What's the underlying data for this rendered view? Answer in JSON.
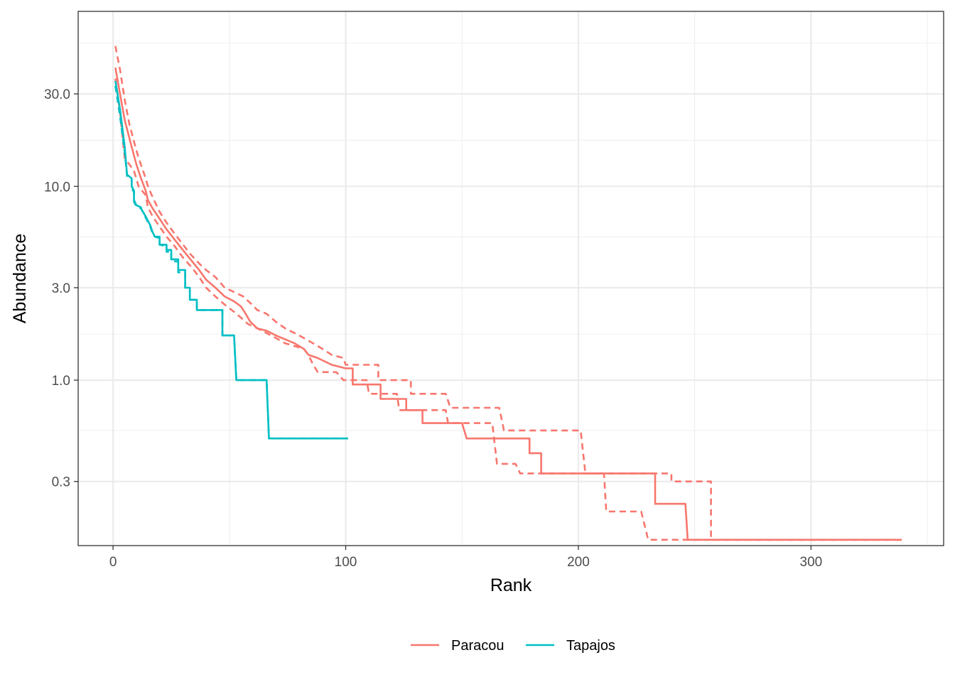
{
  "chart_data": {
    "type": "line",
    "xlabel": "Rank",
    "ylabel": "Abundance",
    "xlim": [
      -15,
      357
    ],
    "ylim_log": [
      0.14,
      80
    ],
    "y_scale": "log10",
    "x_ticks": [
      0,
      100,
      200,
      300
    ],
    "x_tick_labels": [
      "0",
      "100",
      "200",
      "300"
    ],
    "x_minor_ticks": [
      50,
      150,
      250,
      350
    ],
    "y_ticks": [
      0.3,
      1.0,
      3.0,
      10.0,
      30.0
    ],
    "y_tick_labels": [
      "0.3",
      "1.0",
      "3.0",
      "10.0",
      "30.0"
    ],
    "y_minor_ticks": [
      0.55,
      1.73,
      5.48,
      17.3,
      54.8
    ],
    "grid": true,
    "legend_position": "bottom",
    "legend": [
      "Paracou",
      "Tapajos"
    ],
    "colors": {
      "Paracou": "#F8766D",
      "Tapajos": "#00BFC4"
    },
    "series": [
      {
        "name": "Paracou",
        "style": "solid",
        "color": "#F8766D",
        "points": [
          [
            1,
            41
          ],
          [
            3,
            30
          ],
          [
            5,
            22
          ],
          [
            8,
            16
          ],
          [
            10,
            13
          ],
          [
            12,
            11
          ],
          [
            14,
            9.5
          ],
          [
            15,
            8.5
          ],
          [
            17,
            7.7
          ],
          [
            20,
            6.8
          ],
          [
            23,
            6.0
          ],
          [
            26,
            5.4
          ],
          [
            30,
            4.7
          ],
          [
            34,
            4.1
          ],
          [
            37,
            3.7
          ],
          [
            40,
            3.3
          ],
          [
            44,
            3.0
          ],
          [
            48,
            2.7
          ],
          [
            52,
            2.55
          ],
          [
            55,
            2.4
          ],
          [
            57,
            2.2
          ],
          [
            59,
            2.0
          ],
          [
            62,
            1.85
          ],
          [
            66,
            1.8
          ],
          [
            70,
            1.7
          ],
          [
            78,
            1.55
          ],
          [
            82,
            1.45
          ],
          [
            84,
            1.35
          ],
          [
            88,
            1.3
          ],
          [
            94,
            1.2
          ],
          [
            100,
            1.15
          ],
          [
            103,
            1.15
          ],
          [
            103,
            0.95
          ],
          [
            115,
            0.95
          ],
          [
            115,
            0.8
          ],
          [
            126,
            0.8
          ],
          [
            126,
            0.7
          ],
          [
            133,
            0.7
          ],
          [
            133,
            0.6
          ],
          [
            150,
            0.6
          ],
          [
            152,
            0.5
          ],
          [
            179,
            0.5
          ],
          [
            179,
            0.42
          ],
          [
            184,
            0.42
          ],
          [
            184,
            0.33
          ],
          [
            233,
            0.33
          ],
          [
            233,
            0.23
          ],
          [
            246,
            0.23
          ],
          [
            247,
            0.15
          ],
          [
            339,
            0.15
          ]
        ]
      },
      {
        "name": "Paracou",
        "style": "dashed",
        "color": "#F8766D",
        "points": [
          [
            1,
            53
          ],
          [
            3,
            40
          ],
          [
            5,
            28
          ],
          [
            7,
            21
          ],
          [
            9,
            17
          ],
          [
            11,
            14
          ],
          [
            14,
            11
          ],
          [
            15,
            10
          ],
          [
            17,
            8.8
          ],
          [
            20,
            7.4
          ],
          [
            23,
            6.5
          ],
          [
            26,
            5.8
          ],
          [
            29,
            5.2
          ],
          [
            33,
            4.5
          ],
          [
            37,
            4.0
          ],
          [
            40,
            3.7
          ],
          [
            44,
            3.4
          ],
          [
            48,
            3.0
          ],
          [
            52,
            2.85
          ],
          [
            56,
            2.7
          ],
          [
            59,
            2.5
          ],
          [
            62,
            2.3
          ],
          [
            66,
            2.2
          ],
          [
            70,
            2.0
          ],
          [
            74,
            1.85
          ],
          [
            80,
            1.7
          ],
          [
            86,
            1.55
          ],
          [
            90,
            1.45
          ],
          [
            94,
            1.35
          ],
          [
            99,
            1.3
          ],
          [
            100,
            1.2
          ],
          [
            114,
            1.2
          ],
          [
            114,
            1.0
          ],
          [
            128,
            1.0
          ],
          [
            128,
            0.85
          ],
          [
            143,
            0.85
          ],
          [
            145,
            0.72
          ],
          [
            166,
            0.72
          ],
          [
            168,
            0.55
          ],
          [
            201,
            0.55
          ],
          [
            203,
            0.33
          ],
          [
            240,
            0.33
          ],
          [
            240,
            0.3
          ],
          [
            257,
            0.3
          ],
          [
            257,
            0.15
          ],
          [
            339,
            0.15
          ]
        ]
      },
      {
        "name": "Paracou",
        "style": "dashed",
        "color": "#F8766D",
        "points": [
          [
            1,
            36
          ],
          [
            3,
            24
          ],
          [
            5,
            14
          ],
          [
            7,
            13
          ],
          [
            9,
            12
          ],
          [
            11,
            10
          ],
          [
            14,
            9
          ],
          [
            15,
            7.8
          ],
          [
            17,
            7.0
          ],
          [
            20,
            6.2
          ],
          [
            23,
            5.5
          ],
          [
            26,
            5.0
          ],
          [
            30,
            4.3
          ],
          [
            34,
            3.8
          ],
          [
            37,
            3.4
          ],
          [
            40,
            3.0
          ],
          [
            44,
            2.7
          ],
          [
            48,
            2.45
          ],
          [
            52,
            2.25
          ],
          [
            55,
            2.1
          ],
          [
            58,
            1.95
          ],
          [
            62,
            1.85
          ],
          [
            66,
            1.75
          ],
          [
            70,
            1.65
          ],
          [
            74,
            1.55
          ],
          [
            82,
            1.45
          ],
          [
            84,
            1.35
          ],
          [
            86,
            1.2
          ],
          [
            88,
            1.1
          ],
          [
            96,
            1.1
          ],
          [
            99,
            1.0
          ],
          [
            109,
            1.0
          ],
          [
            110,
            0.85
          ],
          [
            122,
            0.85
          ],
          [
            123,
            0.7
          ],
          [
            143,
            0.7
          ],
          [
            144,
            0.6
          ],
          [
            163,
            0.6
          ],
          [
            165,
            0.37
          ],
          [
            173,
            0.37
          ],
          [
            175,
            0.33
          ],
          [
            211,
            0.33
          ],
          [
            212,
            0.21
          ],
          [
            227,
            0.21
          ],
          [
            230,
            0.15
          ],
          [
            339,
            0.15
          ]
        ]
      },
      {
        "name": "Tapajos",
        "style": "solid",
        "color": "#00BFC4",
        "points": [
          [
            1,
            35
          ],
          [
            3,
            25
          ],
          [
            5,
            16
          ],
          [
            6,
            11.5
          ],
          [
            8,
            11
          ],
          [
            8,
            10
          ],
          [
            9,
            9.5
          ],
          [
            9,
            8.5
          ],
          [
            10,
            8
          ],
          [
            12,
            7.8
          ],
          [
            12,
            7.7
          ],
          [
            14,
            7.0
          ],
          [
            16,
            6.3
          ],
          [
            17,
            5.8
          ],
          [
            18,
            5.5
          ],
          [
            20,
            5.5
          ],
          [
            20,
            5.0
          ],
          [
            23,
            5.0
          ],
          [
            23,
            4.7
          ],
          [
            25,
            4.7
          ],
          [
            25,
            4.2
          ],
          [
            28,
            4.2
          ],
          [
            28,
            3.7
          ],
          [
            31,
            3.7
          ],
          [
            31,
            3.0
          ],
          [
            33,
            3.0
          ],
          [
            33,
            2.6
          ],
          [
            36,
            2.6
          ],
          [
            36,
            2.3
          ],
          [
            47,
            2.3
          ],
          [
            47,
            1.7
          ],
          [
            52,
            1.7
          ],
          [
            53,
            1.0
          ],
          [
            66,
            1.0
          ],
          [
            67,
            0.5
          ],
          [
            101,
            0.5
          ]
        ]
      },
      {
        "name": "Tapajos",
        "style": "dashed",
        "color": "#00BFC4",
        "points": [
          [
            1,
            33
          ],
          [
            3,
            23
          ],
          [
            5,
            15
          ],
          [
            6,
            11.3
          ],
          [
            8,
            10.8
          ],
          [
            8,
            9.8
          ],
          [
            9,
            9.3
          ],
          [
            9,
            8.3
          ],
          [
            10,
            7.9
          ],
          [
            12,
            7.7
          ],
          [
            14,
            6.9
          ],
          [
            16,
            6.2
          ],
          [
            17,
            5.7
          ],
          [
            18,
            5.5
          ],
          [
            20,
            5.4
          ],
          [
            20,
            5.0
          ],
          [
            23,
            4.9
          ],
          [
            23,
            4.6
          ],
          [
            25,
            4.6
          ],
          [
            25,
            4.1
          ],
          [
            28,
            4.1
          ],
          [
            28,
            3.6
          ],
          [
            31,
            3.6
          ],
          [
            31,
            3.0
          ],
          [
            33,
            3.0
          ],
          [
            33,
            2.6
          ],
          [
            36,
            2.6
          ],
          [
            36,
            2.3
          ],
          [
            47,
            2.3
          ],
          [
            47,
            1.7
          ],
          [
            52,
            1.7
          ],
          [
            53,
            1.0
          ],
          [
            66,
            1.0
          ],
          [
            67,
            0.5
          ],
          [
            101,
            0.5
          ]
        ]
      }
    ]
  }
}
